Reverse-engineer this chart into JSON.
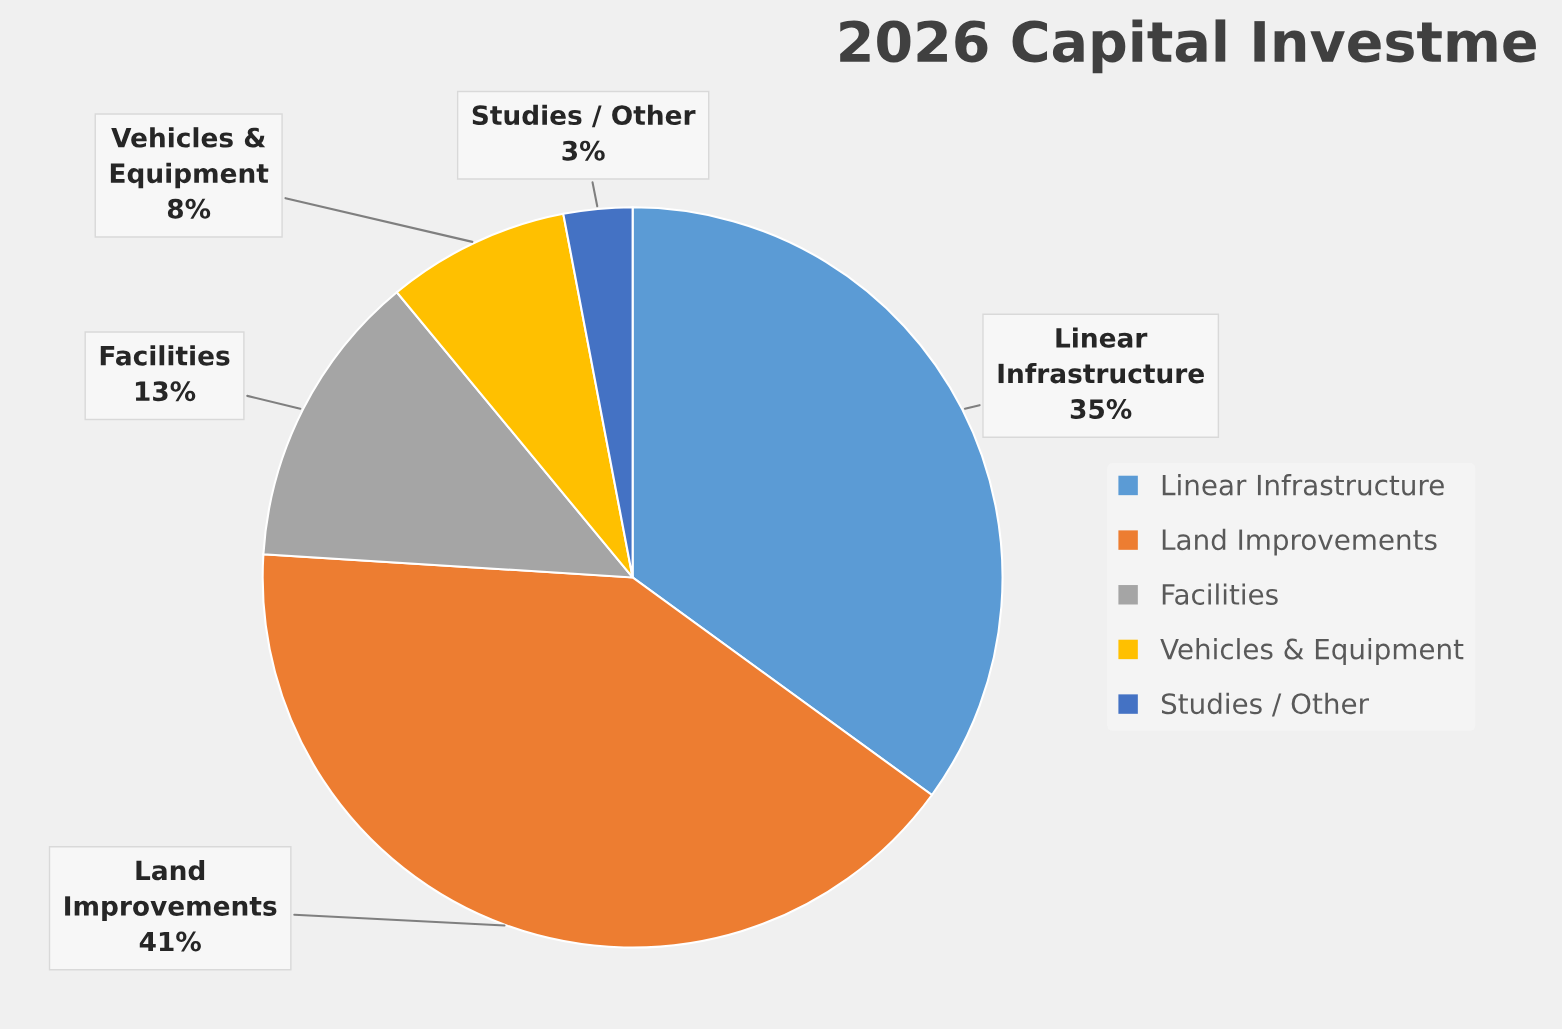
{
  "chart_data": {
    "type": "pie",
    "title": "2026 Capital Investme",
    "categories": [
      "Linear Infrastructure",
      "Land Improvements",
      "Facilities",
      "Vehicles & Equipment",
      "Studies / Other"
    ],
    "values": [
      35,
      41,
      13,
      8,
      3
    ],
    "value_labels": [
      "35%",
      "41%",
      "13%",
      "8%",
      "3%"
    ],
    "colors": [
      "#5b9bd5",
      "#ed7d31",
      "#a5a5a5",
      "#ffc000",
      "#4472c4"
    ],
    "legend": "right"
  }
}
